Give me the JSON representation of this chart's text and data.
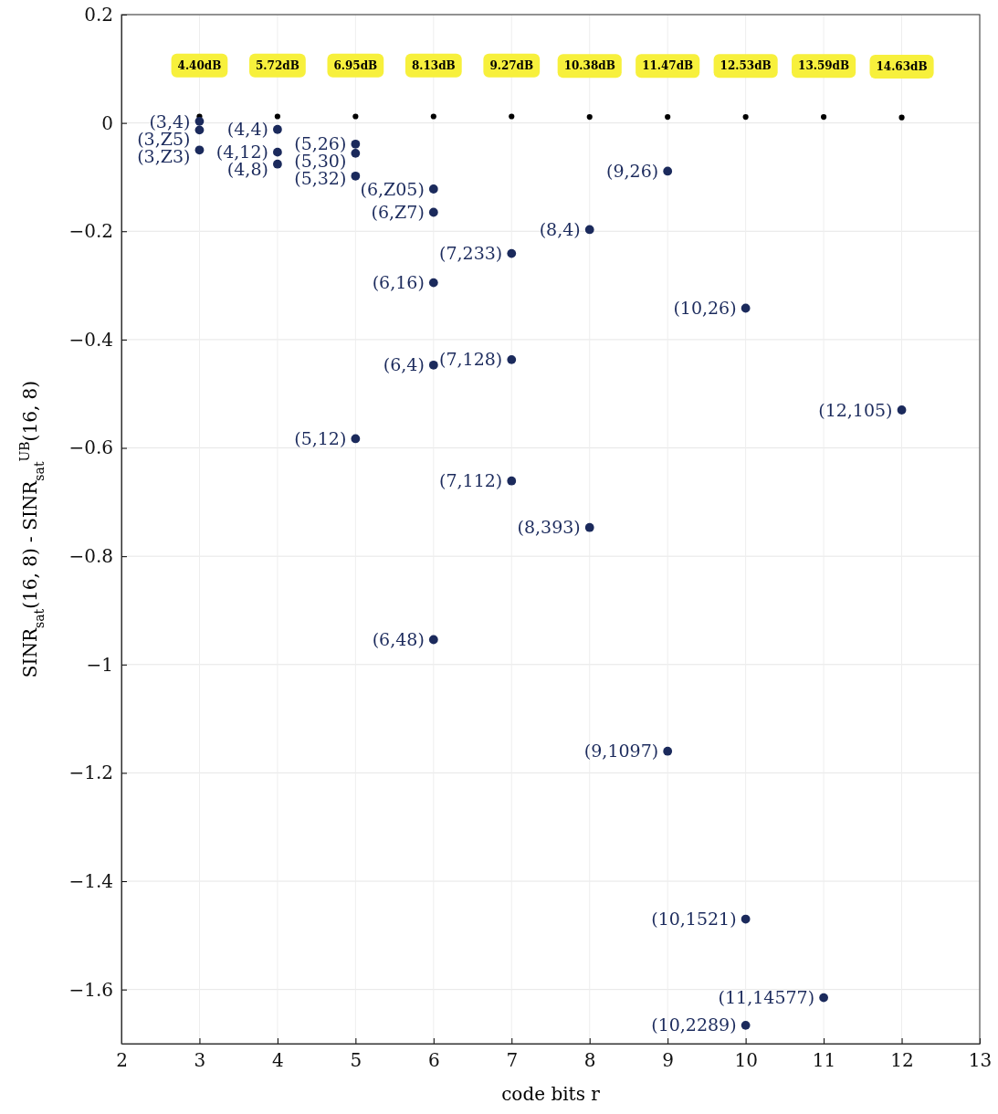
{
  "chart_data": {
    "type": "scatter",
    "xlabel": "code bits r",
    "ylabel": "SINR$_{sat}$(16, 8) - SINR$_{sat}$$^{UB}$(16, 8)",
    "xlim": [
      2,
      13
    ],
    "ylim": [
      -1.7,
      0.2
    ],
    "xticks": [
      2,
      3,
      4,
      5,
      6,
      7,
      8,
      9,
      10,
      11,
      12,
      13
    ],
    "yticks": [
      0.2,
      0,
      -0.2,
      -0.4,
      -0.6,
      -0.8,
      -1,
      -1.2,
      -1.4,
      -1.6
    ],
    "grid": true,
    "marker": "circle",
    "series": [
      {
        "color": "#000000",
        "x": [
          3,
          4,
          5,
          6,
          7,
          8,
          9,
          10,
          11,
          12
        ],
        "values": [
          0.012,
          0.012,
          0.012,
          0.012,
          0.012,
          0.011,
          0.011,
          0.011,
          0.011,
          0.01
        ]
      },
      {
        "color": "#1b2a5c",
        "x": [
          3,
          3,
          3,
          4,
          4,
          4,
          5,
          5,
          5,
          5,
          6,
          6,
          6,
          6,
          6,
          7,
          7,
          7,
          8,
          8,
          9,
          9,
          10,
          10,
          10,
          11,
          12
        ],
        "values": [
          0.003,
          -0.013,
          -0.05,
          -0.012,
          -0.054,
          -0.076,
          -0.039,
          -0.056,
          -0.098,
          -0.583,
          -0.122,
          -0.165,
          -0.295,
          -0.447,
          -0.954,
          -0.241,
          -0.437,
          -0.661,
          -0.197,
          -0.747,
          -0.089,
          -1.16,
          -0.342,
          -1.47,
          -1.666,
          -1.615,
          -0.53
        ]
      }
    ],
    "annotations": [
      "4.40dB",
      "5.72dB",
      "6.95dB",
      "8.13dB",
      "9.27dB",
      "10.38dB",
      "11.47dB",
      "12.53dB",
      "13.59dB",
      "14.63dB",
      {
        "text": "(3,4)",
        "x": 3,
        "y": 0.003
      },
      {
        "text": "(3,Z5)",
        "x": 3,
        "y": -0.013
      },
      {
        "text": "(3,Z3)",
        "x": 3,
        "y": -0.05
      },
      {
        "text": "(4,4)",
        "x": 4,
        "y": -0.012
      },
      {
        "text": "(4,12)",
        "x": 4,
        "y": -0.054
      },
      {
        "text": "(4,8)",
        "x": 4,
        "y": -0.076
      },
      {
        "text": "(5,26)",
        "x": 5,
        "y": -0.039
      },
      {
        "text": "(5,30)",
        "x": 5,
        "y": -0.056
      },
      {
        "text": "(5,32)",
        "x": 5,
        "y": -0.098
      },
      {
        "text": "(5,12)",
        "x": 5,
        "y": -0.583
      },
      {
        "text": "(6,Z05)",
        "x": 6,
        "y": -0.122
      },
      {
        "text": "(6,Z7)",
        "x": 6,
        "y": -0.165
      },
      {
        "text": "(6,16)",
        "x": 6,
        "y": -0.295
      },
      {
        "text": "(6,4)",
        "x": 6,
        "y": -0.447
      },
      {
        "text": "(6,48)",
        "x": 6,
        "y": -0.954
      },
      {
        "text": "(7,233)",
        "x": 7,
        "y": -0.241
      },
      {
        "text": "(7,128)",
        "x": 7,
        "y": -0.437
      },
      {
        "text": "(7,112)",
        "x": 7,
        "y": -0.661
      },
      {
        "text": "(8,4)",
        "x": 8,
        "y": -0.197
      },
      {
        "text": "(8,393)",
        "x": 8,
        "y": -0.747
      },
      {
        "text": "(9,26)",
        "x": 9,
        "y": -0.089
      },
      {
        "text": "(9,1097)",
        "x": 9,
        "y": -1.16
      },
      {
        "text": "(10,26)",
        "x": 10,
        "y": -0.342
      },
      {
        "text": "(10,1521)",
        "x": 10,
        "y": -1.47
      },
      {
        "text": "(10,2289)",
        "x": 10,
        "y": -1.666
      },
      {
        "text": "(11,14577)",
        "x": 11,
        "y": -1.615
      },
      {
        "text": "(12,105)",
        "x": 12,
        "y": -0.53
      }
    ]
  }
}
